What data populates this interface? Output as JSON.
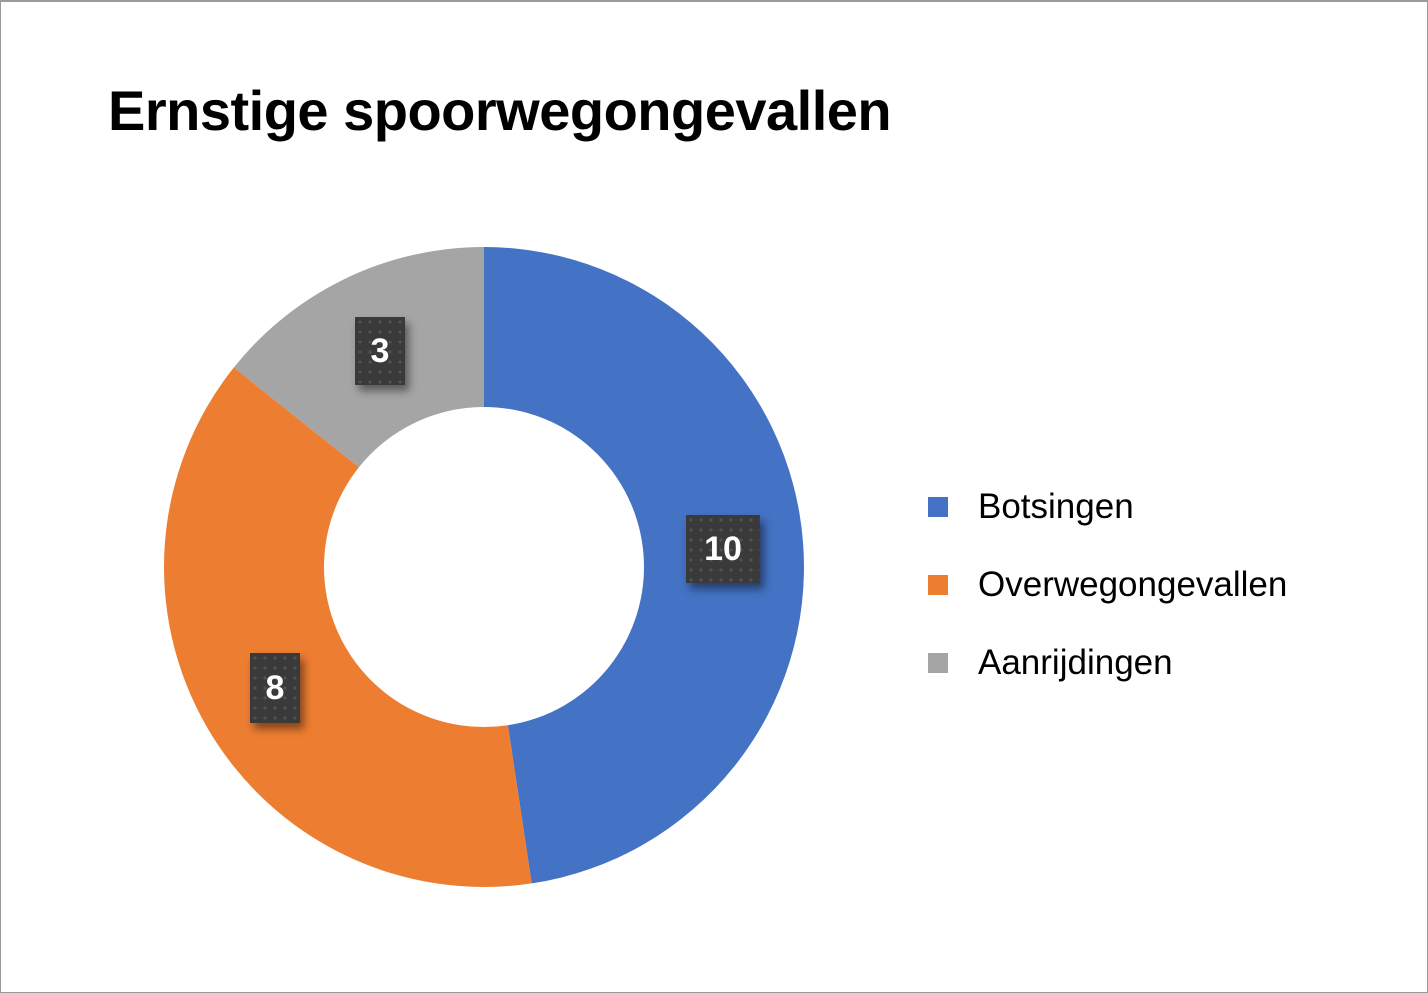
{
  "chart_data": {
    "type": "pie",
    "subtype": "doughnut",
    "title": "Ernstige spoorwegongevallen",
    "categories": [
      "Botsingen",
      "Overwegongevallen",
      "Aanrijdingen"
    ],
    "values": [
      10,
      8,
      3
    ],
    "colors": [
      "#4472C4",
      "#ED7D31",
      "#A5A5A5"
    ],
    "data_labels": [
      "10",
      "8",
      "3"
    ],
    "legend_position": "right",
    "start_angle": 0,
    "direction": "clockwise"
  },
  "title": "Ernstige spoorwegongevallen",
  "legend": [
    {
      "label": "Botsingen",
      "color": "#4472C4"
    },
    {
      "label": "Overwegongevallen",
      "color": "#ED7D31"
    },
    {
      "label": "Aanrijdingen",
      "color": "#A5A5A5"
    }
  ],
  "labels": {
    "botsingen": "10",
    "overweg": "8",
    "aanrijdingen": "3"
  }
}
